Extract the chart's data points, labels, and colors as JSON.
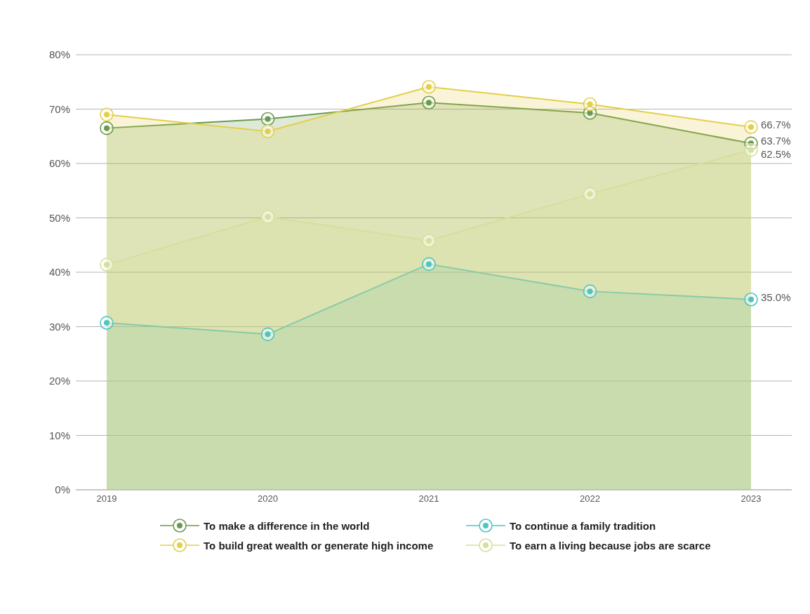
{
  "chart_data": {
    "type": "area",
    "categories": [
      "2019",
      "2020",
      "2021",
      "2022",
      "2023"
    ],
    "series": [
      {
        "name": "To make a difference in the world",
        "color": "#6a9a4f",
        "values": [
          66.5,
          68.2,
          71.2,
          69.3,
          63.7
        ],
        "value_labels": [
          null,
          null,
          null,
          null,
          "63.7%"
        ]
      },
      {
        "name": "To continue a family tradition",
        "color": "#4fc4c4",
        "values": [
          30.7,
          28.6,
          41.5,
          36.5,
          35.0
        ],
        "value_labels": [
          null,
          null,
          null,
          null,
          "35.0%"
        ]
      },
      {
        "name": "To build great wealth or generate high income",
        "color": "#e3cf4a",
        "values": [
          69.0,
          65.9,
          74.1,
          70.9,
          66.7
        ],
        "value_labels": [
          null,
          null,
          null,
          null,
          "66.7%"
        ]
      },
      {
        "name": "To earn a living because jobs are scarce",
        "color": "#d4e09b",
        "values": [
          41.4,
          50.2,
          45.8,
          54.4,
          62.5
        ],
        "value_labels": [
          null,
          null,
          null,
          null,
          "62.5%"
        ]
      }
    ],
    "ylim": [
      0,
      80
    ],
    "yticks": [
      {
        "value": 0,
        "label": "0%"
      },
      {
        "value": 10,
        "label": "10%"
      },
      {
        "value": 20,
        "label": "20%"
      },
      {
        "value": 30,
        "label": "30%"
      },
      {
        "value": 40,
        "label": "40%"
      },
      {
        "value": 50,
        "label": "50%"
      },
      {
        "value": 60,
        "label": "60%"
      },
      {
        "value": 70,
        "label": "70%"
      },
      {
        "value": 80,
        "label": "80%"
      }
    ],
    "grid": "y",
    "legend": "bottom",
    "marker": "circle",
    "line_style": "solid"
  }
}
